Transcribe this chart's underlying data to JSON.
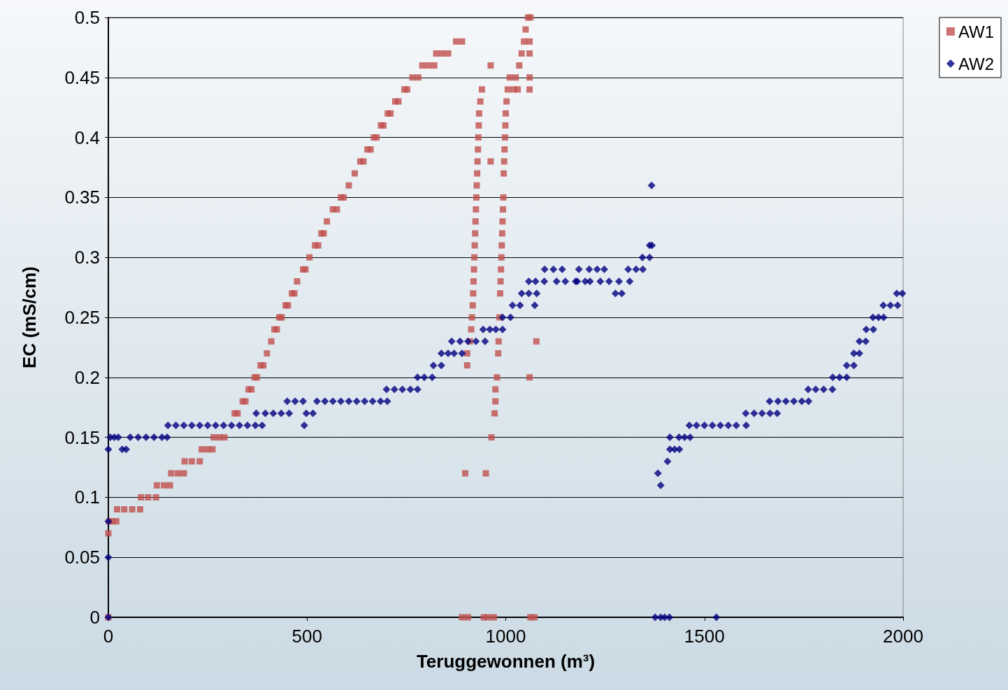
{
  "chart_data": {
    "type": "scatter",
    "xlabel": "Teruggewonnen (m³)",
    "ylabel": "EC (mS/cm)",
    "xlim": [
      0,
      2000
    ],
    "xticks": [
      0,
      500,
      1000,
      1500,
      2000
    ],
    "ylim": [
      0,
      0.5
    ],
    "yticks": [
      0,
      0.05,
      0.1,
      0.15,
      0.2,
      0.25,
      0.3,
      0.35,
      0.4,
      0.45,
      0.5
    ],
    "grid": "y",
    "legend": "top right",
    "series": [
      {
        "name": "AW1",
        "color": "#c0504d",
        "marker": "square",
        "x": [
          0,
          0,
          2,
          10,
          20,
          22,
          40,
          60,
          80,
          82,
          100,
          120,
          122,
          140,
          155,
          158,
          175,
          190,
          192,
          210,
          230,
          235,
          250,
          262,
          265,
          280,
          292,
          318,
          325,
          338,
          345,
          353,
          360,
          368,
          374,
          383,
          390,
          399,
          410,
          418,
          424,
          430,
          436,
          446,
          452,
          462,
          468,
          475,
          490,
          496,
          506,
          520,
          528,
          536,
          542,
          550,
          565,
          575,
          585,
          592,
          605,
          620,
          634,
          642,
          652,
          660,
          668,
          675,
          686,
          692,
          703,
          710,
          722,
          730,
          745,
          752,
          765,
          780,
          790,
          805,
          820,
          825,
          840,
          855,
          875,
          890,
          903,
          903,
          898,
          890,
          905,
          910,
          913,
          915,
          917,
          918,
          919,
          920,
          921,
          922,
          923,
          924,
          925,
          926,
          927,
          928,
          929,
          930,
          931,
          932,
          933,
          936,
          940,
          945,
          955,
          970,
          950,
          962,
          962,
          964,
          972,
          974,
          974,
          978,
          981,
          982,
          984,
          986,
          987,
          988,
          989,
          990,
          991,
          992,
          993,
          994,
          995,
          996,
          997,
          998,
          999,
          1000,
          1002,
          1005,
          1010,
          1020,
          1030,
          1025,
          1034,
          1040,
          1046,
          1050,
          1056,
          1062,
          1060,
          1060,
          1060,
          1060,
          1060,
          1062,
          1072,
          1077
        ],
        "values": [
          0,
          0.07,
          0.08,
          0.08,
          0.08,
          0.09,
          0.09,
          0.09,
          0.09,
          0.1,
          0.1,
          0.1,
          0.11,
          0.11,
          0.11,
          0.12,
          0.12,
          0.12,
          0.13,
          0.13,
          0.13,
          0.14,
          0.14,
          0.14,
          0.15,
          0.15,
          0.15,
          0.17,
          0.17,
          0.18,
          0.18,
          0.19,
          0.19,
          0.2,
          0.2,
          0.21,
          0.21,
          0.22,
          0.23,
          0.24,
          0.24,
          0.25,
          0.25,
          0.26,
          0.26,
          0.27,
          0.27,
          0.28,
          0.29,
          0.29,
          0.3,
          0.31,
          0.31,
          0.32,
          0.32,
          0.33,
          0.34,
          0.34,
          0.35,
          0.35,
          0.36,
          0.37,
          0.38,
          0.38,
          0.39,
          0.39,
          0.4,
          0.4,
          0.41,
          0.41,
          0.42,
          0.42,
          0.43,
          0.43,
          0.44,
          0.44,
          0.45,
          0.45,
          0.46,
          0.46,
          0.46,
          0.47,
          0.47,
          0.47,
          0.48,
          0.48,
          0.22,
          0.21,
          0.12,
          0,
          0,
          0.23,
          0.24,
          0.25,
          0.26,
          0.27,
          0.28,
          0.29,
          0.3,
          0.31,
          0.32,
          0.33,
          0.34,
          0.35,
          0.36,
          0.37,
          0.38,
          0.39,
          0.4,
          0.41,
          0.42,
          0.43,
          0.44,
          0,
          0,
          0,
          0.12,
          0.46,
          0.38,
          0.15,
          0.17,
          0.18,
          0.19,
          0.2,
          0.22,
          0.23,
          0.25,
          0.27,
          0.28,
          0.29,
          0.3,
          0.31,
          0.32,
          0.33,
          0.34,
          0.35,
          0.37,
          0.38,
          0.39,
          0.4,
          0.41,
          0.42,
          0.43,
          0.44,
          0.45,
          0.44,
          0.44,
          0.45,
          0.46,
          0.47,
          0.48,
          0.49,
          0.5,
          0.5,
          0.48,
          0.47,
          0.45,
          0.44,
          0.2,
          0,
          0,
          0.23
        ]
      },
      {
        "name": "AW2",
        "color": "#000080",
        "marker": "diamond",
        "x": [
          0,
          0,
          0,
          0,
          5,
          15,
          25,
          35,
          45,
          55,
          75,
          95,
          115,
          135,
          148,
          150,
          170,
          190,
          210,
          230,
          250,
          270,
          290,
          310,
          330,
          350,
          370,
          387,
          372,
          395,
          415,
          435,
          455,
          450,
          470,
          490,
          493,
          498,
          515,
          525,
          545,
          565,
          585,
          605,
          625,
          645,
          665,
          685,
          702,
          700,
          720,
          740,
          760,
          778,
          778,
          795,
          815,
          818,
          838,
          838,
          855,
          870,
          890,
          864,
          885,
          905,
          925,
          948,
          943,
          960,
          975,
          992,
          992,
          1012,
          1017,
          1036,
          1040,
          1058,
          1058,
          1075,
          1097,
          1073,
          1078,
          1098,
          1120,
          1142,
          1128,
          1150,
          1176,
          1184,
          1180,
          1200,
          1212,
          1210,
          1230,
          1248,
          1238,
          1260,
          1285,
          1312,
          1276,
          1292,
          1308,
          1328,
          1345,
          1344,
          1362,
          1362,
          1368,
          1367,
          1376,
          1390,
          1400,
          1412,
          1383,
          1390,
          1407,
          1413,
          1413,
          1425,
          1437,
          1436,
          1450,
          1464,
          1462,
          1480,
          1500,
          1520,
          1540,
          1560,
          1580,
          1605,
          1604,
          1625,
          1645,
          1665,
          1683,
          1664,
          1685,
          1705,
          1725,
          1745,
          1762,
          1761,
          1780,
          1800,
          1822,
          1823,
          1840,
          1858,
          1858,
          1876,
          1876,
          1890,
          1890,
          1906,
          1907,
          1925,
          1924,
          1938,
          1951,
          1950,
          1968,
          1986,
          1984,
          1998,
          1530
        ],
        "values": [
          0,
          0.05,
          0.08,
          0.14,
          0.15,
          0.15,
          0.15,
          0.14,
          0.14,
          0.15,
          0.15,
          0.15,
          0.15,
          0.15,
          0.15,
          0.16,
          0.16,
          0.16,
          0.16,
          0.16,
          0.16,
          0.16,
          0.16,
          0.16,
          0.16,
          0.16,
          0.16,
          0.16,
          0.17,
          0.17,
          0.17,
          0.17,
          0.17,
          0.18,
          0.18,
          0.18,
          0.16,
          0.17,
          0.17,
          0.18,
          0.18,
          0.18,
          0.18,
          0.18,
          0.18,
          0.18,
          0.18,
          0.18,
          0.18,
          0.19,
          0.19,
          0.19,
          0.19,
          0.19,
          0.2,
          0.2,
          0.2,
          0.21,
          0.21,
          0.22,
          0.22,
          0.22,
          0.22,
          0.23,
          0.23,
          0.23,
          0.23,
          0.23,
          0.24,
          0.24,
          0.24,
          0.24,
          0.25,
          0.25,
          0.26,
          0.26,
          0.27,
          0.27,
          0.28,
          0.28,
          0.28,
          0.26,
          0.27,
          0.29,
          0.29,
          0.29,
          0.28,
          0.28,
          0.28,
          0.29,
          0.28,
          0.28,
          0.28,
          0.29,
          0.29,
          0.29,
          0.28,
          0.28,
          0.28,
          0.28,
          0.27,
          0.27,
          0.29,
          0.29,
          0.29,
          0.3,
          0.3,
          0.31,
          0.31,
          0.36,
          0,
          0,
          0,
          0,
          0.12,
          0.11,
          0.13,
          0.15,
          0.14,
          0.14,
          0.14,
          0.15,
          0.15,
          0.15,
          0.16,
          0.16,
          0.16,
          0.16,
          0.16,
          0.16,
          0.16,
          0.16,
          0.17,
          0.17,
          0.17,
          0.17,
          0.17,
          0.18,
          0.18,
          0.18,
          0.18,
          0.18,
          0.18,
          0.19,
          0.19,
          0.19,
          0.19,
          0.2,
          0.2,
          0.2,
          0.21,
          0.21,
          0.22,
          0.22,
          0.23,
          0.23,
          0.24,
          0.24,
          0.25,
          0.25,
          0.25,
          0.26,
          0.26,
          0.26,
          0.27,
          0.27,
          0
        ]
      }
    ]
  }
}
